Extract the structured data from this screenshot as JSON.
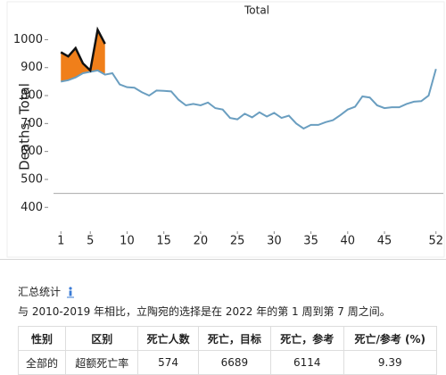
{
  "chart_data": {
    "type": "line",
    "title": "Total",
    "y_label": "Deaths, Total",
    "x": [
      1,
      2,
      3,
      4,
      5,
      6,
      7,
      8,
      9,
      10,
      11,
      12,
      13,
      14,
      15,
      16,
      17,
      18,
      19,
      20,
      21,
      22,
      23,
      24,
      25,
      26,
      27,
      28,
      29,
      30,
      31,
      32,
      33,
      34,
      35,
      36,
      37,
      38,
      39,
      40,
      41,
      42,
      43,
      44,
      45,
      46,
      47,
      48,
      49,
      50,
      51,
      52
    ],
    "series": [
      {
        "color": "#6a9ec0",
        "values": [
          850,
          855,
          865,
          880,
          885,
          890,
          875,
          880,
          840,
          830,
          828,
          812,
          800,
          818,
          817,
          815,
          785,
          765,
          770,
          765,
          775,
          755,
          750,
          720,
          715,
          735,
          722,
          740,
          725,
          738,
          720,
          728,
          700,
          682,
          695,
          695,
          705,
          712,
          730,
          750,
          760,
          797,
          793,
          765,
          755,
          758,
          758,
          770,
          778,
          780,
          800,
          895
        ]
      },
      {
        "color": "#111111",
        "fill": "#f07f1a",
        "values": [
          955,
          940,
          970,
          915,
          890,
          1035,
          985,
          null,
          null,
          null,
          null,
          null,
          null,
          null,
          null,
          null,
          null,
          null,
          null,
          null,
          null,
          null,
          null,
          null,
          null,
          null,
          null,
          null,
          null,
          null,
          null,
          null,
          null,
          null,
          null,
          null,
          null,
          null,
          null,
          null,
          null,
          null,
          null,
          null,
          null,
          null,
          null,
          null,
          null,
          null,
          null,
          null
        ]
      }
    ],
    "hline": 450,
    "xlim": [
      0,
      53
    ],
    "xticks": [
      1,
      5,
      10,
      15,
      20,
      25,
      30,
      35,
      40,
      45,
      52
    ],
    "ylim": [
      305,
      1078
    ],
    "yticks": [
      400,
      500,
      600,
      700,
      800,
      900,
      1000
    ]
  },
  "summary": {
    "title": "汇总统计",
    "text": "与 2010-2019 年相比，立陶宛的选择是在 2022 年的第 1 周到第 7 周之间。",
    "table": {
      "header": [
        "性别",
        "区别",
        "死亡人数",
        "死亡，目标",
        "死亡，参考",
        "死亡/参考 (%)"
      ],
      "rows": [
        [
          "全部的",
          "超额死亡率",
          "574",
          "6689",
          "6114",
          "9.39"
        ]
      ]
    }
  }
}
